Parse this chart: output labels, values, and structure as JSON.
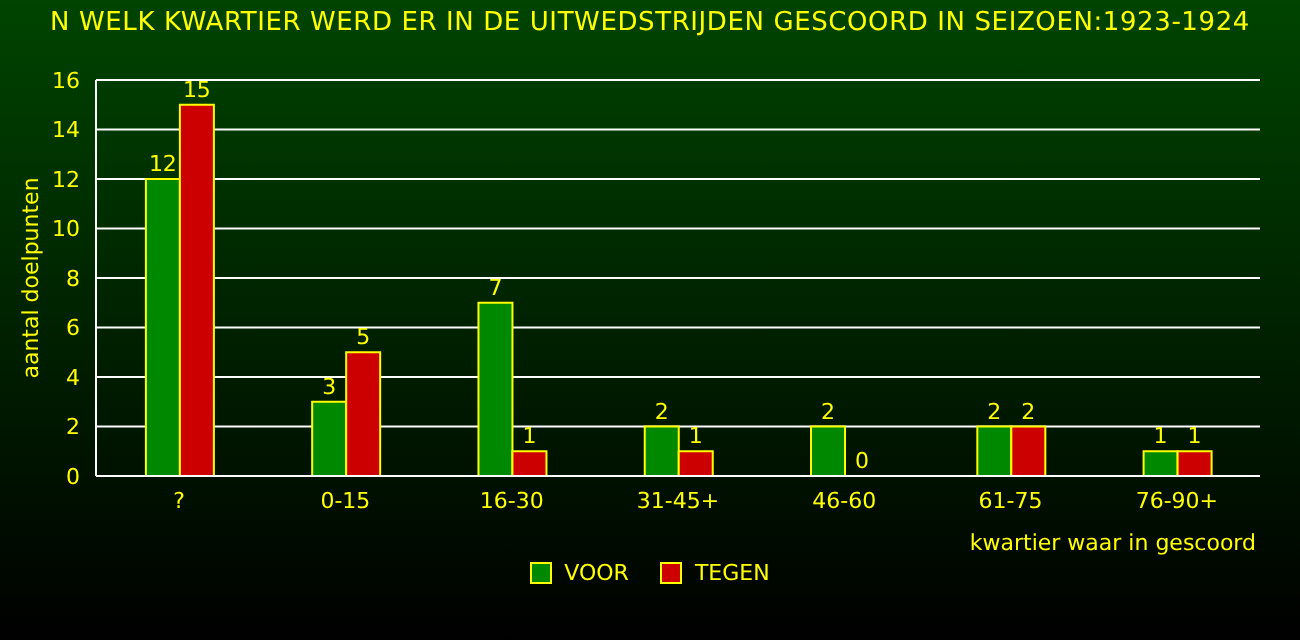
{
  "chart_data": {
    "type": "bar",
    "title": "N WELK KWARTIER WERD ER IN DE UITWEDSTRIJDEN GESCOORD IN SEIZOEN:1923-1924",
    "xlabel": "kwartier waar in gescoord",
    "ylabel": "aantal doelpunten",
    "categories": [
      "?",
      "0-15",
      "16-30",
      "31-45+",
      "46-60",
      "61-75",
      "76-90+"
    ],
    "series": [
      {
        "name": "VOOR",
        "color": "#008800",
        "values": [
          12,
          3,
          7,
          2,
          2,
          2,
          1
        ]
      },
      {
        "name": "TEGEN",
        "color": "#cc0000",
        "values": [
          15,
          5,
          1,
          1,
          0,
          2,
          1
        ]
      }
    ],
    "ylim": [
      0,
      16
    ],
    "yticks": [
      0,
      2,
      4,
      6,
      8,
      10,
      12,
      14,
      16
    ],
    "grid": "y",
    "legend": "bottom",
    "data_labels": true
  }
}
